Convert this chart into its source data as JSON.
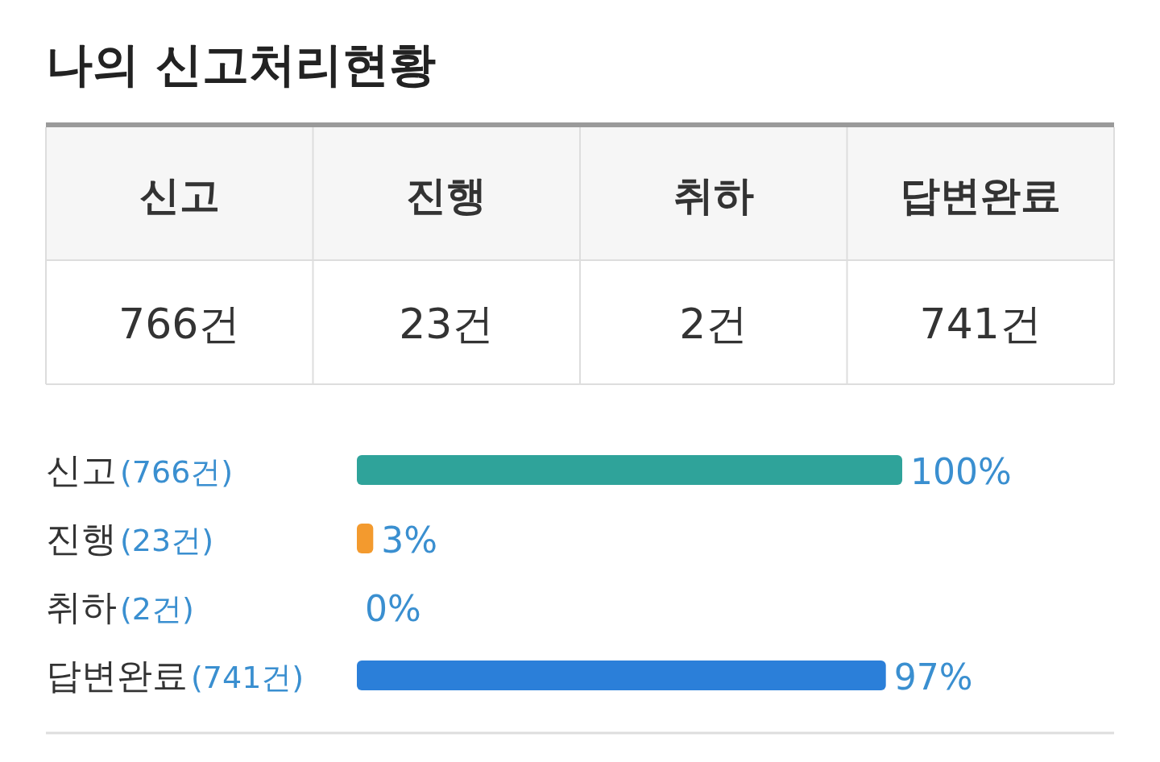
{
  "chart_data": [
    {
      "type": "other",
      "title": "나의 신고처리현황",
      "categories": [
        "신고",
        "진행",
        "취하",
        "답변완료"
      ],
      "value_labels": [
        "766건",
        "23건",
        "2건",
        "741건"
      ]
    },
    {
      "type": "bar",
      "orientation": "horizontal",
      "categories": [
        "신고(766건)",
        "진행(23건)",
        "취하(2건)",
        "답변완료(741건)"
      ],
      "values": [
        100,
        3,
        0,
        97
      ],
      "colors": [
        "#2fa39a",
        "#f39a2e",
        "#9e9e9e",
        "#2b7fd9"
      ],
      "xlim": [
        0,
        100
      ],
      "value_labels": [
        "100%",
        "3%",
        "0%",
        "97%"
      ]
    }
  ]
}
